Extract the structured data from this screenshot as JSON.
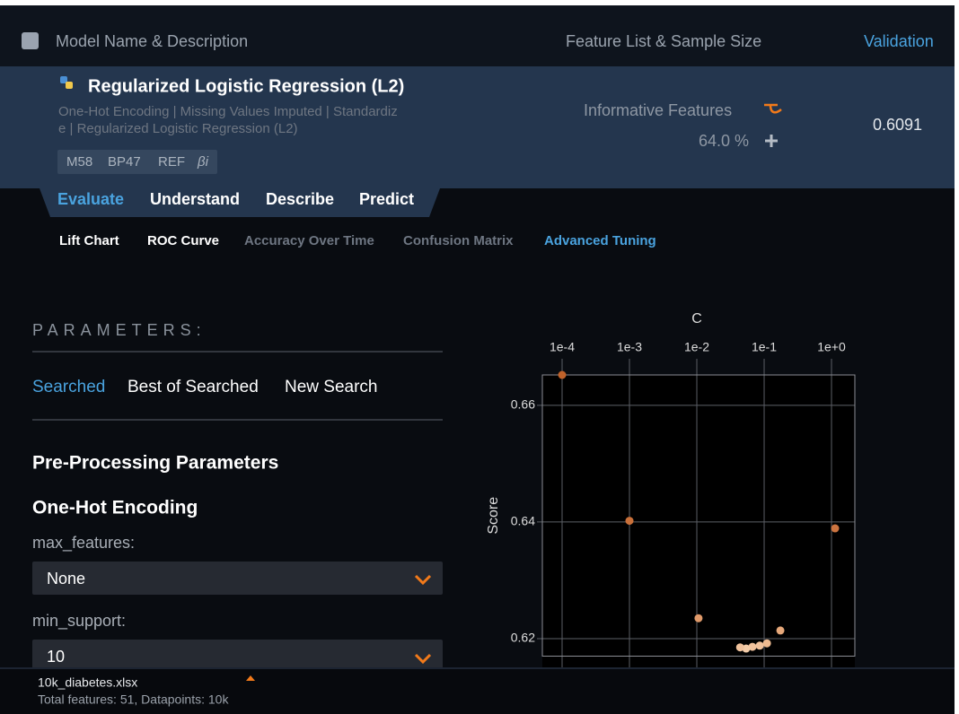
{
  "header": {
    "columns": [
      "Model Name & Description",
      "Feature List & Sample Size",
      "Validation"
    ]
  },
  "model": {
    "title": "Regularized Logistic Regression (L2)",
    "description": [
      "One-Hot Encoding | Missing Values Imputed | Standardiz",
      "e | Regularized Logistic Regression (L2)"
    ],
    "tags": [
      "M58",
      "BP47",
      "REF",
      "βi"
    ],
    "feature_list": "Informative Features",
    "sample_size": "64.0 %",
    "validation": "0.6091"
  },
  "tabs": [
    "Evaluate",
    "Understand",
    "Describe",
    "Predict"
  ],
  "subtabs": [
    "Lift Chart",
    "ROC Curve",
    "Accuracy Over Time",
    "Confusion Matrix",
    "Advanced Tuning"
  ],
  "parameters": {
    "heading": "PARAMETERS:",
    "search_tabs": [
      "Searched",
      "Best of Searched",
      "New Search"
    ],
    "section": "Pre-Processing Parameters",
    "group": "One-Hot Encoding",
    "fields": [
      {
        "label": "max_features:",
        "value": "None"
      },
      {
        "label": "min_support:",
        "value": "10"
      }
    ]
  },
  "footer": {
    "file": "10k_diabetes.xlsx",
    "info": "Total features: 51, Datapoints: 10k"
  },
  "chart_data": {
    "type": "scatter",
    "xlabel": "C",
    "ylabel": "Score",
    "xscale": "log",
    "xaxis": "top",
    "x": [
      0.0001,
      0.001,
      1.13,
      0.0106,
      0.174,
      0.11,
      0.086,
      0.067,
      0.054,
      0.044
    ],
    "values": [
      0.6652,
      0.6402,
      0.6389,
      0.6235,
      0.6214,
      0.6192,
      0.6188,
      0.6186,
      0.6183,
      0.6185
    ],
    "colors": [
      "#c0622a",
      "#c9703a",
      "#cc7440",
      "#e09a6a",
      "#e6a87a",
      "#eeba90",
      "#f0c29c",
      "#f0c29c",
      "#f3cca8",
      "#f0c29c"
    ],
    "xlim": [
      5.09e-05,
      2.22
    ],
    "ylim": [
      0.617,
      0.6652
    ],
    "xticks": [
      {
        "value": 0.0001,
        "label": "1e-4"
      },
      {
        "value": 0.001,
        "label": "1e-3"
      },
      {
        "value": 0.01,
        "label": "1e-2"
      },
      {
        "value": 0.1,
        "label": "1e-1"
      },
      {
        "value": 1,
        "label": "1e+0"
      }
    ],
    "yticks": [
      0.62,
      0.64,
      0.66
    ],
    "grid": true
  }
}
